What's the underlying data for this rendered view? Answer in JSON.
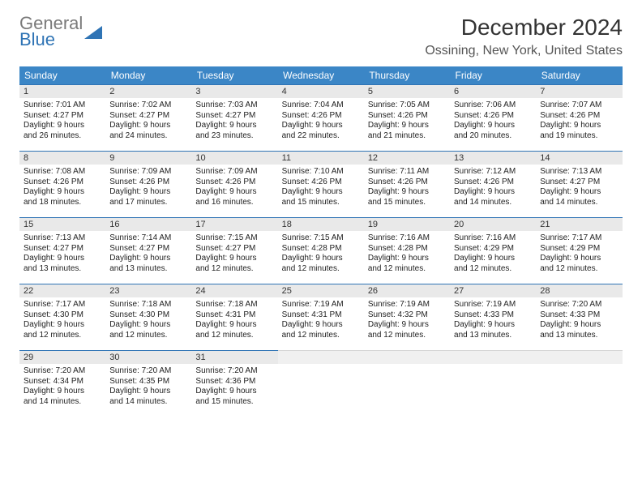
{
  "logo": {
    "line1": "General",
    "line2": "Blue"
  },
  "title": "December 2024",
  "location": "Ossining, New York, United States",
  "colors": {
    "header_bg": "#3b86c6",
    "header_text": "#ffffff",
    "daynum_bg": "#e9e9e9",
    "day_border_top": "#2f74b5",
    "logo_gray": "#7a7a7a",
    "logo_blue": "#2f74b5"
  },
  "weekdays": [
    "Sunday",
    "Monday",
    "Tuesday",
    "Wednesday",
    "Thursday",
    "Friday",
    "Saturday"
  ],
  "weeks": [
    [
      {
        "n": "1",
        "sr": "Sunrise: 7:01 AM",
        "ss": "Sunset: 4:27 PM",
        "d1": "Daylight: 9 hours",
        "d2": "and 26 minutes."
      },
      {
        "n": "2",
        "sr": "Sunrise: 7:02 AM",
        "ss": "Sunset: 4:27 PM",
        "d1": "Daylight: 9 hours",
        "d2": "and 24 minutes."
      },
      {
        "n": "3",
        "sr": "Sunrise: 7:03 AM",
        "ss": "Sunset: 4:27 PM",
        "d1": "Daylight: 9 hours",
        "d2": "and 23 minutes."
      },
      {
        "n": "4",
        "sr": "Sunrise: 7:04 AM",
        "ss": "Sunset: 4:26 PM",
        "d1": "Daylight: 9 hours",
        "d2": "and 22 minutes."
      },
      {
        "n": "5",
        "sr": "Sunrise: 7:05 AM",
        "ss": "Sunset: 4:26 PM",
        "d1": "Daylight: 9 hours",
        "d2": "and 21 minutes."
      },
      {
        "n": "6",
        "sr": "Sunrise: 7:06 AM",
        "ss": "Sunset: 4:26 PM",
        "d1": "Daylight: 9 hours",
        "d2": "and 20 minutes."
      },
      {
        "n": "7",
        "sr": "Sunrise: 7:07 AM",
        "ss": "Sunset: 4:26 PM",
        "d1": "Daylight: 9 hours",
        "d2": "and 19 minutes."
      }
    ],
    [
      {
        "n": "8",
        "sr": "Sunrise: 7:08 AM",
        "ss": "Sunset: 4:26 PM",
        "d1": "Daylight: 9 hours",
        "d2": "and 18 minutes."
      },
      {
        "n": "9",
        "sr": "Sunrise: 7:09 AM",
        "ss": "Sunset: 4:26 PM",
        "d1": "Daylight: 9 hours",
        "d2": "and 17 minutes."
      },
      {
        "n": "10",
        "sr": "Sunrise: 7:09 AM",
        "ss": "Sunset: 4:26 PM",
        "d1": "Daylight: 9 hours",
        "d2": "and 16 minutes."
      },
      {
        "n": "11",
        "sr": "Sunrise: 7:10 AM",
        "ss": "Sunset: 4:26 PM",
        "d1": "Daylight: 9 hours",
        "d2": "and 15 minutes."
      },
      {
        "n": "12",
        "sr": "Sunrise: 7:11 AM",
        "ss": "Sunset: 4:26 PM",
        "d1": "Daylight: 9 hours",
        "d2": "and 15 minutes."
      },
      {
        "n": "13",
        "sr": "Sunrise: 7:12 AM",
        "ss": "Sunset: 4:26 PM",
        "d1": "Daylight: 9 hours",
        "d2": "and 14 minutes."
      },
      {
        "n": "14",
        "sr": "Sunrise: 7:13 AM",
        "ss": "Sunset: 4:27 PM",
        "d1": "Daylight: 9 hours",
        "d2": "and 14 minutes."
      }
    ],
    [
      {
        "n": "15",
        "sr": "Sunrise: 7:13 AM",
        "ss": "Sunset: 4:27 PM",
        "d1": "Daylight: 9 hours",
        "d2": "and 13 minutes."
      },
      {
        "n": "16",
        "sr": "Sunrise: 7:14 AM",
        "ss": "Sunset: 4:27 PM",
        "d1": "Daylight: 9 hours",
        "d2": "and 13 minutes."
      },
      {
        "n": "17",
        "sr": "Sunrise: 7:15 AM",
        "ss": "Sunset: 4:27 PM",
        "d1": "Daylight: 9 hours",
        "d2": "and 12 minutes."
      },
      {
        "n": "18",
        "sr": "Sunrise: 7:15 AM",
        "ss": "Sunset: 4:28 PM",
        "d1": "Daylight: 9 hours",
        "d2": "and 12 minutes."
      },
      {
        "n": "19",
        "sr": "Sunrise: 7:16 AM",
        "ss": "Sunset: 4:28 PM",
        "d1": "Daylight: 9 hours",
        "d2": "and 12 minutes."
      },
      {
        "n": "20",
        "sr": "Sunrise: 7:16 AM",
        "ss": "Sunset: 4:29 PM",
        "d1": "Daylight: 9 hours",
        "d2": "and 12 minutes."
      },
      {
        "n": "21",
        "sr": "Sunrise: 7:17 AM",
        "ss": "Sunset: 4:29 PM",
        "d1": "Daylight: 9 hours",
        "d2": "and 12 minutes."
      }
    ],
    [
      {
        "n": "22",
        "sr": "Sunrise: 7:17 AM",
        "ss": "Sunset: 4:30 PM",
        "d1": "Daylight: 9 hours",
        "d2": "and 12 minutes."
      },
      {
        "n": "23",
        "sr": "Sunrise: 7:18 AM",
        "ss": "Sunset: 4:30 PM",
        "d1": "Daylight: 9 hours",
        "d2": "and 12 minutes."
      },
      {
        "n": "24",
        "sr": "Sunrise: 7:18 AM",
        "ss": "Sunset: 4:31 PM",
        "d1": "Daylight: 9 hours",
        "d2": "and 12 minutes."
      },
      {
        "n": "25",
        "sr": "Sunrise: 7:19 AM",
        "ss": "Sunset: 4:31 PM",
        "d1": "Daylight: 9 hours",
        "d2": "and 12 minutes."
      },
      {
        "n": "26",
        "sr": "Sunrise: 7:19 AM",
        "ss": "Sunset: 4:32 PM",
        "d1": "Daylight: 9 hours",
        "d2": "and 12 minutes."
      },
      {
        "n": "27",
        "sr": "Sunrise: 7:19 AM",
        "ss": "Sunset: 4:33 PM",
        "d1": "Daylight: 9 hours",
        "d2": "and 13 minutes."
      },
      {
        "n": "28",
        "sr": "Sunrise: 7:20 AM",
        "ss": "Sunset: 4:33 PM",
        "d1": "Daylight: 9 hours",
        "d2": "and 13 minutes."
      }
    ],
    [
      {
        "n": "29",
        "sr": "Sunrise: 7:20 AM",
        "ss": "Sunset: 4:34 PM",
        "d1": "Daylight: 9 hours",
        "d2": "and 14 minutes."
      },
      {
        "n": "30",
        "sr": "Sunrise: 7:20 AM",
        "ss": "Sunset: 4:35 PM",
        "d1": "Daylight: 9 hours",
        "d2": "and 14 minutes."
      },
      {
        "n": "31",
        "sr": "Sunrise: 7:20 AM",
        "ss": "Sunset: 4:36 PM",
        "d1": "Daylight: 9 hours",
        "d2": "and 15 minutes."
      },
      {
        "empty": true
      },
      {
        "empty": true
      },
      {
        "empty": true
      },
      {
        "empty": true
      }
    ]
  ]
}
